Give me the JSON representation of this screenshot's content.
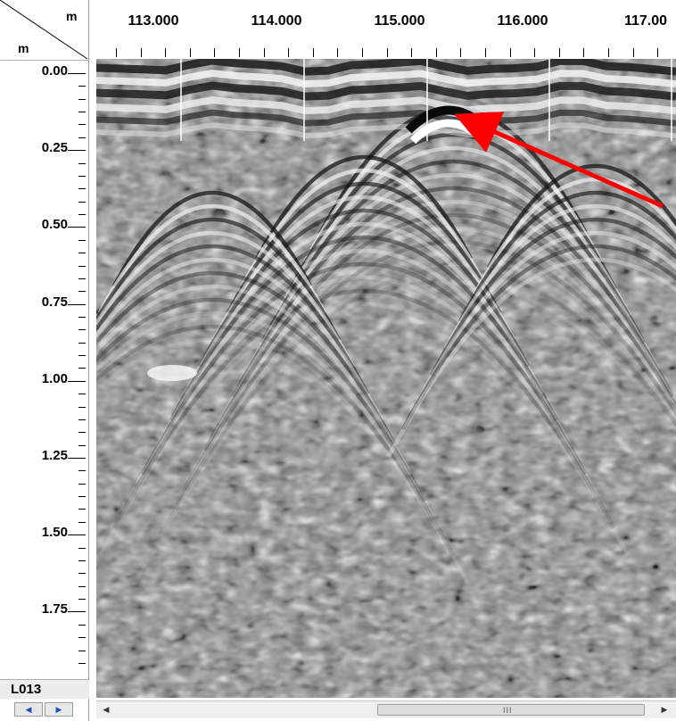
{
  "corner": {
    "x_unit": "m",
    "y_unit": "m"
  },
  "x_axis": {
    "labels": [
      "113.000",
      "114.000",
      "115.000",
      "116.000",
      "117.00"
    ]
  },
  "y_axis": {
    "labels": [
      "0.00",
      "0.25",
      "0.50",
      "0.75",
      "1.00",
      "1.25",
      "1.50",
      "1.75"
    ]
  },
  "line_label": "L013",
  "scrollbar": {
    "grip": "III"
  },
  "colors": {
    "arrow": "#ff0000",
    "marker_line": "#ffffff"
  },
  "icons": {
    "nav_left": "left-arrow-icon",
    "nav_right": "right-arrow-icon",
    "scroll_left": "scroll-left-icon",
    "scroll_right": "scroll-right-icon"
  }
}
